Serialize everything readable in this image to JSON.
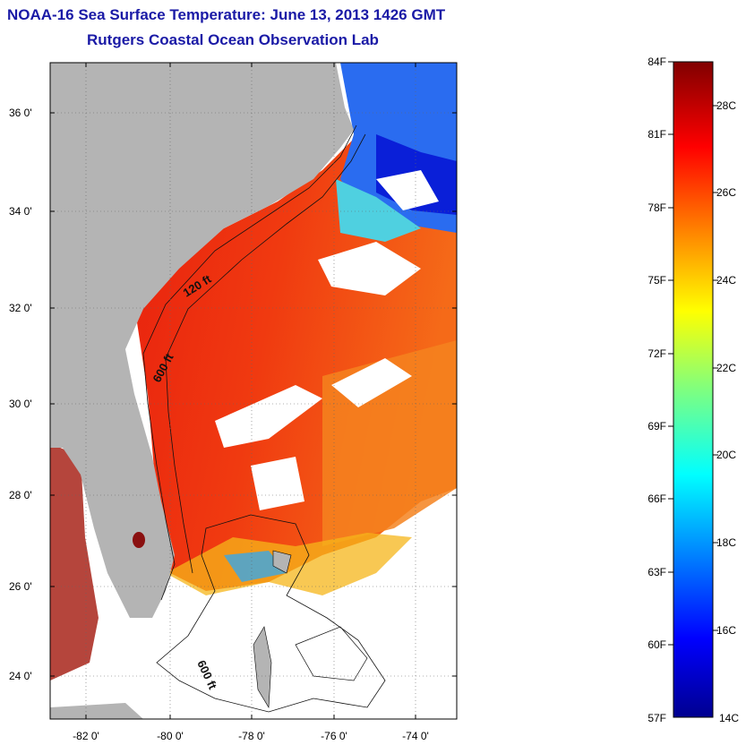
{
  "title": "NOAA-16 Sea Surface Temperature:  June 13, 2013 1426 GMT",
  "subtitle": "Rutgers Coastal Ocean Observation Lab",
  "map": {
    "lat_labels": [
      "36 0'",
      "34 0'",
      "32 0'",
      "30 0'",
      "28 0'",
      "26 0'",
      "24 0'"
    ],
    "lon_labels": [
      "-82 0'",
      "-80 0'",
      "-78 0'",
      "-76 0'",
      "-74 0'"
    ],
    "contour_labels": [
      "120 ft",
      "600 ft",
      "600 ft"
    ],
    "lat_range": [
      23,
      37
    ],
    "lon_range": [
      -83.2,
      -72.7
    ],
    "land_color": "#b4b4b4",
    "cloud_color": "#ffffff"
  },
  "colorbar": {
    "f_labels": [
      "84F",
      "81F",
      "78F",
      "75F",
      "72F",
      "69F",
      "66F",
      "63F",
      "60F",
      "57F"
    ],
    "c_labels": [
      "28C",
      "26C",
      "24C",
      "22C",
      "20C",
      "18C",
      "16C",
      "14C"
    ],
    "colormap": "jet"
  }
}
